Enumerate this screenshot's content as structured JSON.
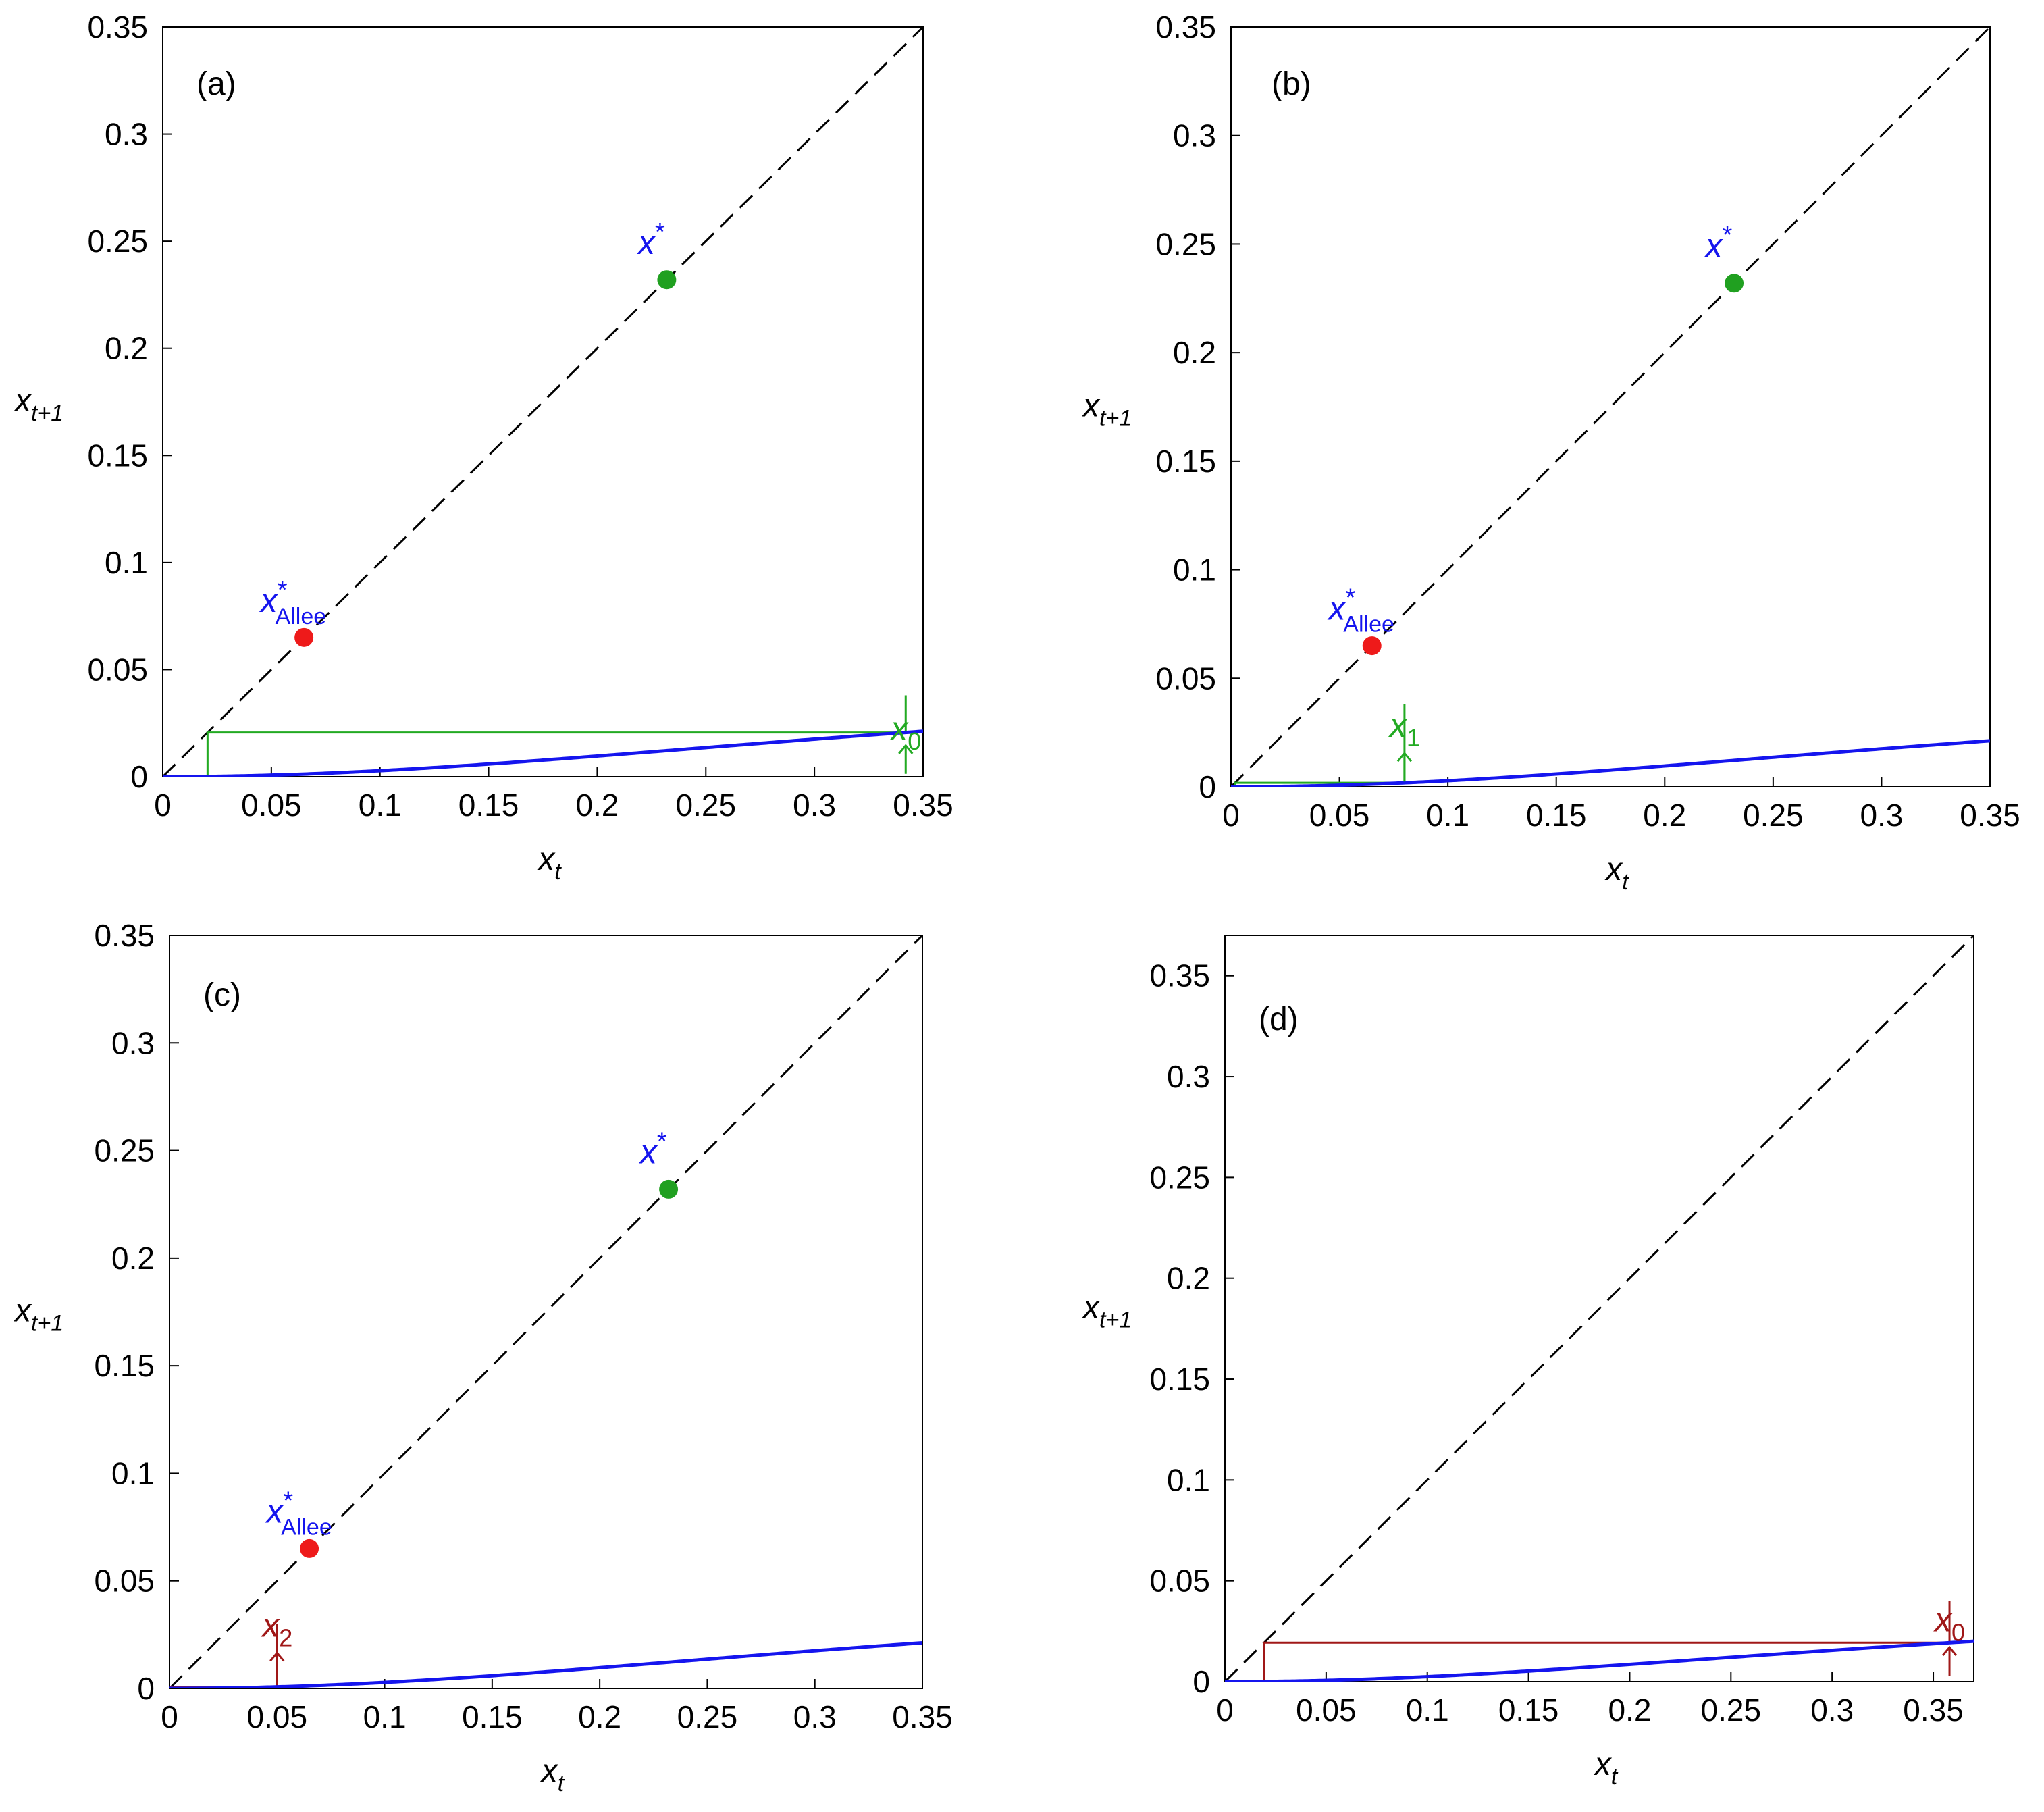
{
  "colors": {
    "curve": "#1515ee",
    "diagonal": "#000000",
    "cobweb_green": "#22aa22",
    "cobweb_red": "#a01818",
    "allee_point": "#ee1a1a",
    "stable_point": "#20a020",
    "label_blue": "#1515ee",
    "axis": "#000000"
  },
  "chart_data": [
    {
      "type": "line",
      "panel": "(a)",
      "title": "",
      "xlabel": "x_t",
      "ylabel": "x_{t+1}",
      "xlim": [
        0,
        0.35
      ],
      "ylim": [
        0,
        0.35
      ],
      "xticks": [
        "0",
        "0.05",
        "0.1",
        "0.15",
        "0.2",
        "0.25",
        "0.3",
        "0.35"
      ],
      "yticks": [
        "0",
        "0.05",
        "0.1",
        "0.15",
        "0.2",
        "0.25",
        "0.3",
        "0.35"
      ],
      "xtick_values": [
        0,
        0.05,
        0.1,
        0.15,
        0.2,
        0.25,
        0.3,
        0.35
      ],
      "ytick_values": [
        0,
        0.05,
        0.1,
        0.15,
        0.2,
        0.25,
        0.3,
        0.35
      ],
      "series": [
        {
          "name": "map f(x_t)",
          "kind": "curve"
        },
        {
          "name": "identity x_{t+1}=x_t",
          "kind": "diagonal"
        },
        {
          "name": "cobweb from x_0",
          "kind": "cobweb",
          "color": "green",
          "start": 0.342,
          "label_anchor": 0.038,
          "steps": 5
        }
      ],
      "points": [
        {
          "name": "Allee threshold",
          "x": 0.065,
          "y": 0.065,
          "color": "red"
        },
        {
          "name": "stable equilibrium",
          "x": 0.232,
          "y": 0.232,
          "color": "green"
        }
      ],
      "annotations": {
        "star_label": {
          "text": "x",
          "sup": "*",
          "x": 0.225,
          "y": 0.244
        },
        "allee_label": {
          "text": "x",
          "sup": "*",
          "sub": "Allee",
          "x": 0.045,
          "y": 0.077
        },
        "start_label": {
          "text": "x",
          "sub": "0",
          "x": 0.342,
          "y": 0.017,
          "arrow_y": 0.007
        }
      }
    },
    {
      "type": "line",
      "panel": "(b)",
      "title": "",
      "xlabel": "x_t",
      "ylabel": "x_{t+1}",
      "xlim": [
        0,
        0.35
      ],
      "ylim": [
        0,
        0.35
      ],
      "xticks": [
        "0",
        "0.05",
        "0.1",
        "0.15",
        "0.2",
        "0.25",
        "0.3",
        "0.35"
      ],
      "yticks": [
        "0",
        "0.05",
        "0.1",
        "0.15",
        "0.2",
        "0.25",
        "0.3",
        "0.35"
      ],
      "xtick_values": [
        0,
        0.05,
        0.1,
        0.15,
        0.2,
        0.25,
        0.3,
        0.35
      ],
      "ytick_values": [
        0,
        0.05,
        0.1,
        0.15,
        0.2,
        0.25,
        0.3,
        0.35
      ],
      "series": [
        {
          "name": "map f(x_t)",
          "kind": "curve"
        },
        {
          "name": "identity x_{t+1}=x_t",
          "kind": "diagonal"
        },
        {
          "name": "cobweb from x_1",
          "kind": "cobweb",
          "color": "green",
          "start": 0.08,
          "label_anchor": 0.038,
          "steps": 12
        }
      ],
      "points": [
        {
          "name": "Allee threshold",
          "x": 0.065,
          "y": 0.065,
          "color": "red"
        },
        {
          "name": "stable equilibrium",
          "x": 0.232,
          "y": 0.232,
          "color": "green"
        }
      ],
      "annotations": {
        "star_label": {
          "text": "x",
          "sup": "*",
          "x": 0.225,
          "y": 0.244
        },
        "allee_label": {
          "text": "x",
          "sup": "*",
          "sub": "Allee",
          "x": 0.045,
          "y": 0.077
        },
        "start_label": {
          "text": "x",
          "sub": "1",
          "x": 0.08,
          "y": 0.023,
          "arrow_y": 0.008
        }
      }
    },
    {
      "type": "line",
      "panel": "(c)",
      "title": "",
      "xlabel": "x_t",
      "ylabel": "x_{t+1}",
      "xlim": [
        0,
        0.35
      ],
      "ylim": [
        0,
        0.35
      ],
      "xticks": [
        "0",
        "0.05",
        "0.1",
        "0.15",
        "0.2",
        "0.25",
        "0.3",
        "0.35"
      ],
      "yticks": [
        "0",
        "0.05",
        "0.1",
        "0.15",
        "0.2",
        "0.25",
        "0.3",
        "0.35"
      ],
      "xtick_values": [
        0,
        0.05,
        0.1,
        0.15,
        0.2,
        0.25,
        0.3,
        0.35
      ],
      "ytick_values": [
        0,
        0.05,
        0.1,
        0.15,
        0.2,
        0.25,
        0.3,
        0.35
      ],
      "series": [
        {
          "name": "map f(x_t)",
          "kind": "curve"
        },
        {
          "name": "identity x_{t+1}=x_t",
          "kind": "diagonal"
        },
        {
          "name": "cobweb from x_2",
          "kind": "cobweb",
          "color": "red",
          "start": 0.05,
          "label_anchor": 0.03,
          "steps": 14
        }
      ],
      "points": [
        {
          "name": "Allee threshold",
          "x": 0.065,
          "y": 0.065,
          "color": "red"
        },
        {
          "name": "stable equilibrium",
          "x": 0.232,
          "y": 0.232,
          "color": "green"
        }
      ],
      "annotations": {
        "star_label": {
          "text": "x",
          "sup": "*",
          "x": 0.225,
          "y": 0.244
        },
        "allee_label": {
          "text": "x",
          "sup": "*",
          "sub": "Allee",
          "x": 0.045,
          "y": 0.077
        },
        "start_label": {
          "text": "x",
          "sub": "2",
          "x": 0.05,
          "y": 0.024,
          "arrow_y": 0.009
        }
      }
    },
    {
      "type": "line",
      "panel": "(d)",
      "title": "",
      "xlabel": "x_t",
      "ylabel": "x_{t+1}",
      "xlim": [
        0,
        0.37
      ],
      "ylim": [
        0,
        0.37
      ],
      "xticks": [
        "0",
        "0.05",
        "0.1",
        "0.15",
        "0.2",
        "0.25",
        "0.3",
        "0.35"
      ],
      "yticks": [
        "0",
        "0.05",
        "0.1",
        "0.15",
        "0.2",
        "0.25",
        "0.3",
        "0.35"
      ],
      "xtick_values": [
        0,
        0.05,
        0.1,
        0.15,
        0.2,
        0.25,
        0.3,
        0.35
      ],
      "ytick_values": [
        0,
        0.05,
        0.1,
        0.15,
        0.2,
        0.25,
        0.3,
        0.35
      ],
      "series": [
        {
          "name": "map f(x_t) (below diagonal)",
          "kind": "curve"
        },
        {
          "name": "identity x_{t+1}=x_t",
          "kind": "diagonal"
        },
        {
          "name": "cobweb from x_0",
          "kind": "cobweb",
          "color": "red",
          "start": 0.358,
          "label_anchor": 0.04,
          "steps": 40
        }
      ],
      "points": [],
      "annotations": {
        "start_label": {
          "text": "x",
          "sub": "0",
          "x": 0.358,
          "y": 0.025,
          "arrow_y": 0.009
        }
      }
    }
  ]
}
